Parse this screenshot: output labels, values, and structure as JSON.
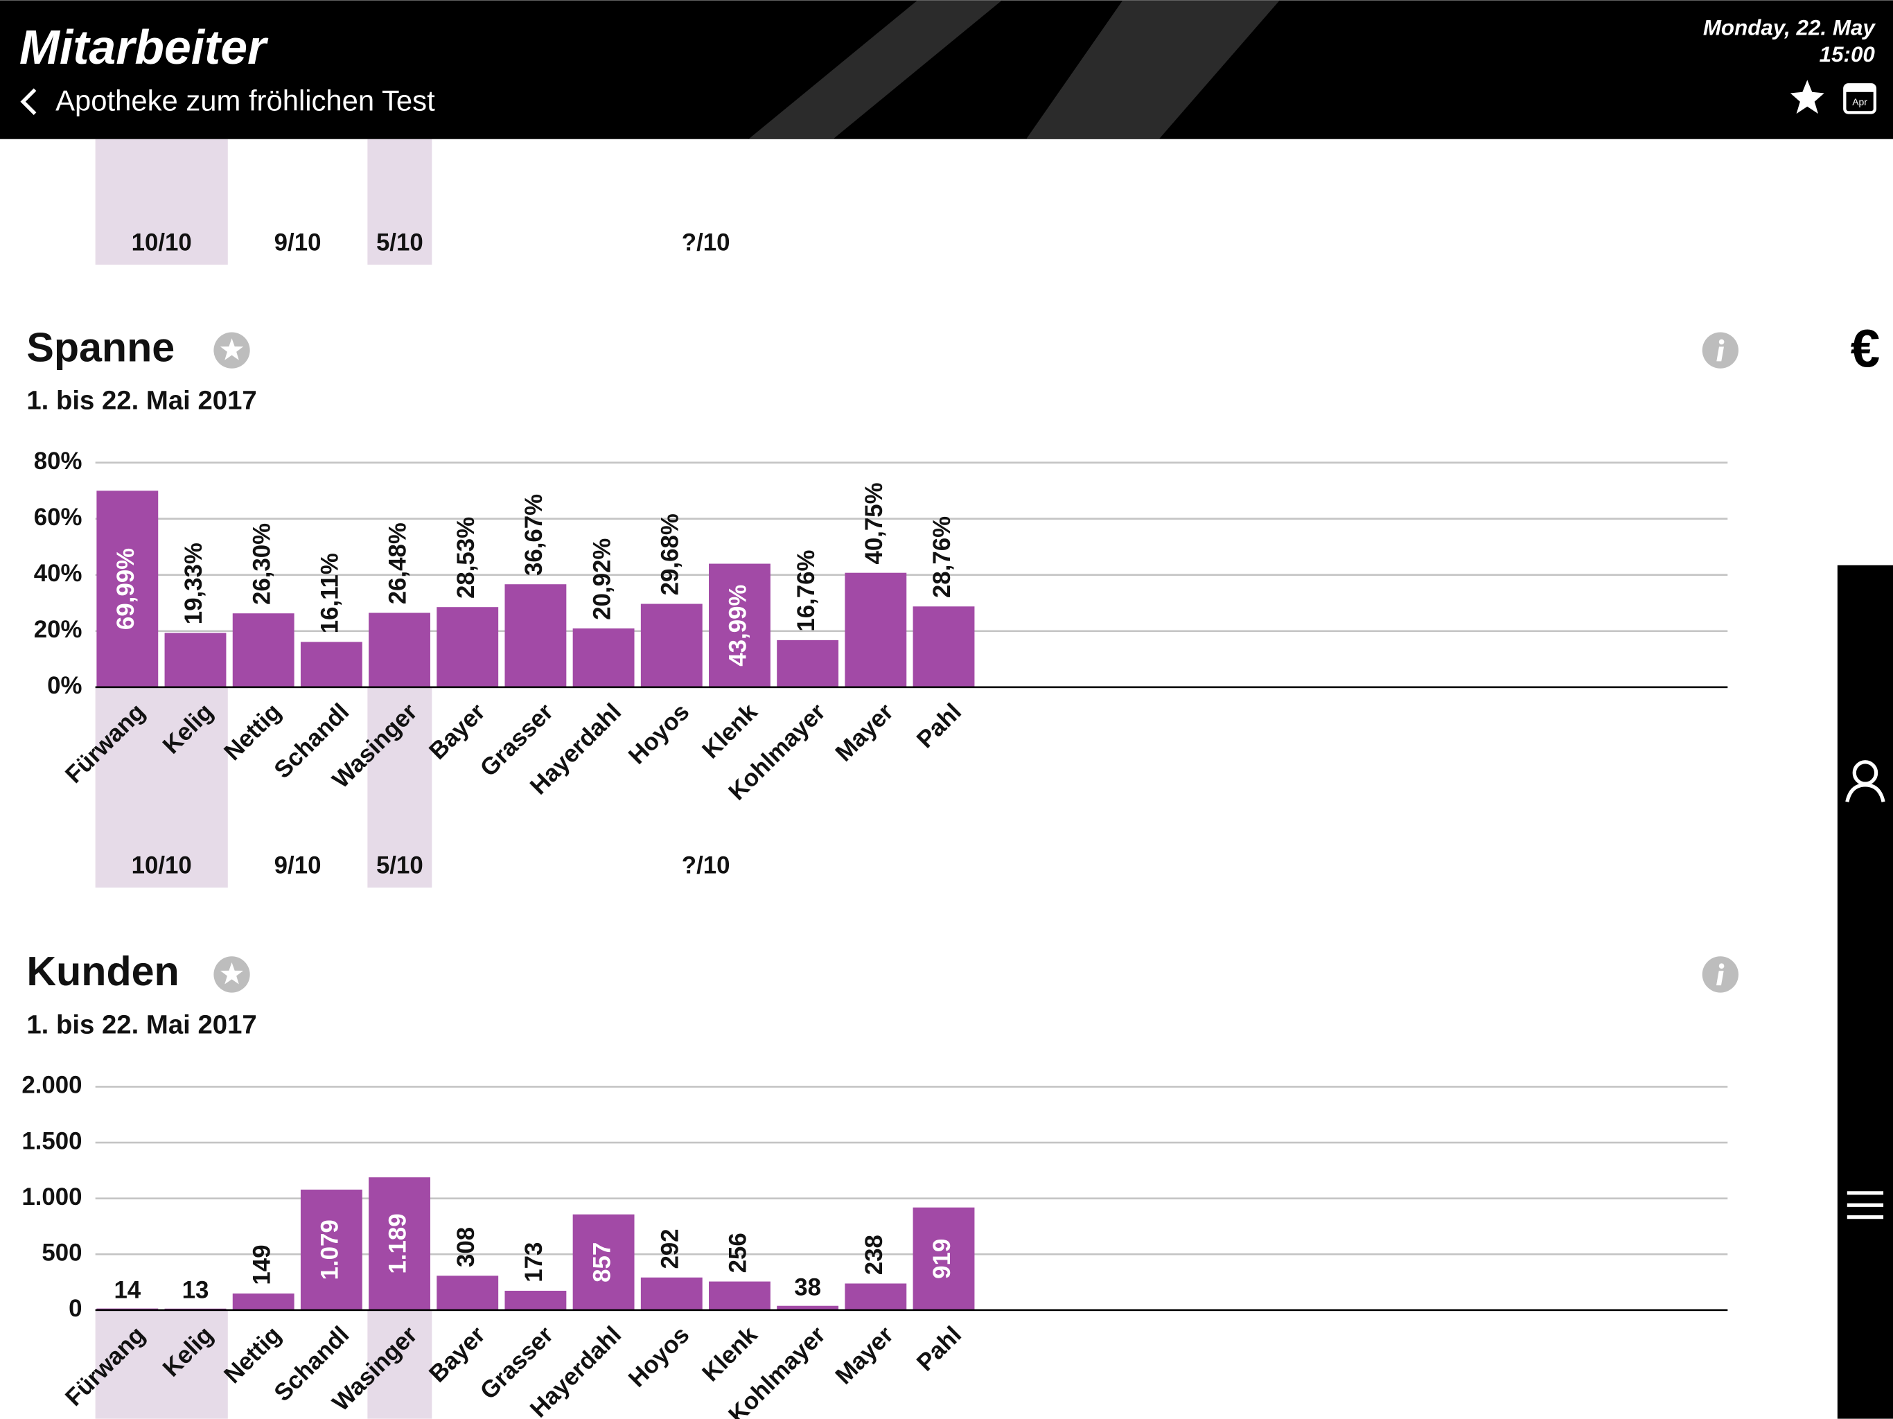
{
  "header": {
    "title": "Mitarbeiter",
    "back_label": "Apotheke zum fröhlichen Test",
    "date": "Monday, 22. May",
    "time": "15:00",
    "calendar_label": "Apr"
  },
  "sidebar": {
    "currency": "€"
  },
  "above_chart": {
    "groups": [
      {
        "label": "10/10",
        "start": 0,
        "end": 1
      },
      {
        "label": "9/10",
        "start": 2,
        "end": 3
      },
      {
        "label": "5/10",
        "start": 4,
        "end": 4
      },
      {
        "label": "?/10",
        "start": 5,
        "end": 12
      }
    ]
  },
  "chart_data": [
    {
      "type": "bar",
      "title": "Spanne",
      "subtitle": "1. bis 22. Mai 2017",
      "color": "#a24aa6",
      "grid": true,
      "categories": [
        "Fürwang",
        "Kelig",
        "Nettig",
        "Schandl",
        "Wasinger",
        "Bayer",
        "Grasser",
        "Hayerdahl",
        "Hoyos",
        "Klenk",
        "Kohlmayer",
        "Mayer",
        "Pahl"
      ],
      "values": [
        69.99,
        19.33,
        26.3,
        16.11,
        26.48,
        28.53,
        36.67,
        20.92,
        29.68,
        43.99,
        16.76,
        40.75,
        28.76
      ],
      "value_labels": [
        "69,99%",
        "19,33%",
        "26,30%",
        "16,11%",
        "26,48%",
        "28,53%",
        "36,67%",
        "20,92%",
        "29,68%",
        "43,99%",
        "16,76%",
        "40,75%",
        "28,76%"
      ],
      "ylim": [
        0,
        80
      ],
      "yticks": [
        {
          "value": 0,
          "label": "0%"
        },
        {
          "value": 20,
          "label": "20%"
        },
        {
          "value": 40,
          "label": "40%"
        },
        {
          "value": 60,
          "label": "60%"
        },
        {
          "value": 80,
          "label": "80%"
        }
      ],
      "groups": [
        {
          "label": "10/10",
          "start": 0,
          "end": 1
        },
        {
          "label": "9/10",
          "start": 2,
          "end": 3
        },
        {
          "label": "5/10",
          "start": 4,
          "end": 4
        },
        {
          "label": "?/10",
          "start": 5,
          "end": 12
        }
      ]
    },
    {
      "type": "bar",
      "title": "Kunden",
      "subtitle": "1. bis 22. Mai 2017",
      "color": "#a24aa6",
      "grid": true,
      "categories": [
        "Fürwang",
        "Kelig",
        "Nettig",
        "Schandl",
        "Wasinger",
        "Bayer",
        "Grasser",
        "Hayerdahl",
        "Hoyos",
        "Klenk",
        "Kohlmayer",
        "Mayer",
        "Pahl"
      ],
      "values": [
        14,
        13,
        149,
        1079,
        1189,
        308,
        173,
        857,
        292,
        256,
        38,
        238,
        919
      ],
      "value_labels": [
        "14",
        "13",
        "149",
        "1.079",
        "1.189",
        "308",
        "173",
        "857",
        "292",
        "256",
        "38",
        "238",
        "919"
      ],
      "ylim": [
        0,
        2000
      ],
      "yticks": [
        0,
        500,
        {
          "value": 1000,
          "label": "1.000"
        },
        {
          "value": 1500,
          "label": "1.500"
        },
        {
          "value": 2000,
          "label": "2.000"
        }
      ]
    }
  ]
}
